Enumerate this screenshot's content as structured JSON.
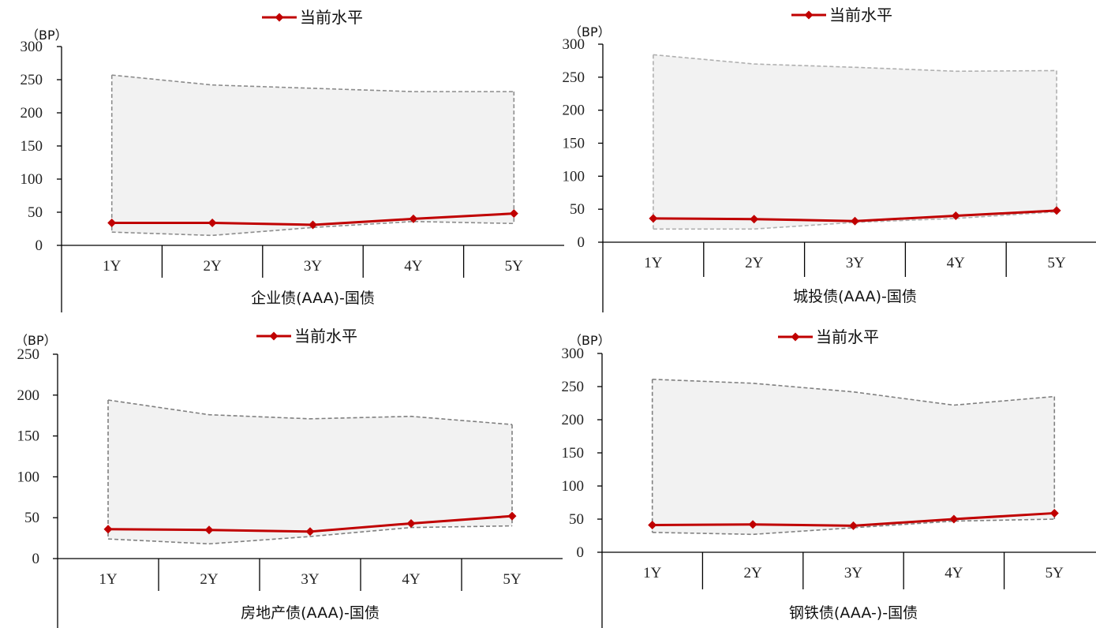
{
  "chart_data": [
    {
      "type": "line",
      "unit_label": "（BP）",
      "xlabel": "企业债(AAA)-国债",
      "legend": "当前水平",
      "categories": [
        "1Y",
        "2Y",
        "3Y",
        "4Y",
        "5Y"
      ],
      "ylim": [
        0,
        300
      ],
      "yticks": [
        0,
        50,
        100,
        150,
        200,
        250,
        300
      ],
      "series": [
        {
          "name": "当前水平",
          "values": [
            34,
            34,
            31,
            40,
            48
          ]
        }
      ],
      "range_max": [
        257,
        242,
        237,
        232,
        232
      ],
      "range_min": [
        20,
        15,
        27,
        36,
        33
      ],
      "colors": {
        "current": "#c00000",
        "range_fill": "#f2f2f2",
        "range_border": "#8c8c8c"
      }
    },
    {
      "type": "line",
      "unit_label": "（BP）",
      "xlabel": "城投债(AAA)-国债",
      "legend": "当前水平",
      "categories": [
        "1Y",
        "2Y",
        "3Y",
        "4Y",
        "5Y"
      ],
      "ylim": [
        0,
        300
      ],
      "yticks": [
        0,
        50,
        100,
        150,
        200,
        250,
        300
      ],
      "series": [
        {
          "name": "当前水平",
          "values": [
            36,
            35,
            32,
            40,
            48
          ]
        }
      ],
      "range_max": [
        284,
        270,
        265,
        259,
        260
      ],
      "range_min": [
        20,
        20,
        30,
        36,
        46
      ],
      "colors": {
        "current": "#c00000",
        "range_fill": "#f2f2f2",
        "range_border": "#b0b0b0"
      }
    },
    {
      "type": "line",
      "unit_label": "（BP）",
      "xlabel": "房地产债(AAA)-国债",
      "legend": "当前水平",
      "categories": [
        "1Y",
        "2Y",
        "3Y",
        "4Y",
        "5Y"
      ],
      "ylim": [
        0,
        250
      ],
      "yticks": [
        0,
        50,
        100,
        150,
        200,
        250
      ],
      "series": [
        {
          "name": "当前水平",
          "values": [
            36,
            35,
            33,
            43,
            52
          ]
        }
      ],
      "range_max": [
        194,
        176,
        171,
        174,
        164
      ],
      "range_min": [
        24,
        18,
        27,
        38,
        40
      ],
      "colors": {
        "current": "#c00000",
        "range_fill": "#f2f2f2",
        "range_border": "#808080"
      }
    },
    {
      "type": "line",
      "unit_label": "（BP）",
      "xlabel": "钢铁债(AAA-)-国债",
      "legend": "当前水平",
      "categories": [
        "1Y",
        "2Y",
        "3Y",
        "4Y",
        "5Y"
      ],
      "ylim": [
        0,
        300
      ],
      "yticks": [
        0,
        50,
        100,
        150,
        200,
        250,
        300
      ],
      "series": [
        {
          "name": "当前水平",
          "values": [
            41,
            42,
            40,
            50,
            59
          ]
        }
      ],
      "range_max": [
        261,
        255,
        242,
        222,
        235
      ],
      "range_min": [
        30,
        27,
        37,
        47,
        50
      ],
      "colors": {
        "current": "#c00000",
        "range_fill": "#f2f2f2",
        "range_border": "#808080"
      }
    }
  ]
}
